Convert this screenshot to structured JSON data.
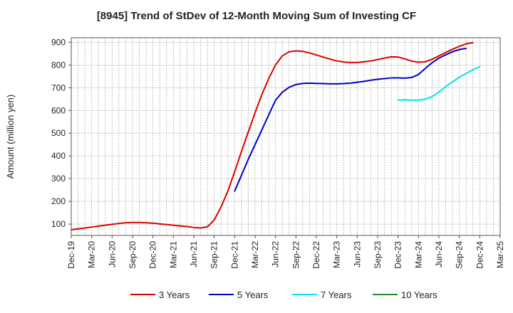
{
  "chart_data": {
    "type": "line",
    "title": "[8945]  Trend of StDev of 12-Month Moving Sum of Investing CF",
    "ylabel": "Amount (million yen)",
    "xlabel": "",
    "ylim": [
      50,
      920
    ],
    "yticks": [
      100,
      200,
      300,
      400,
      500,
      600,
      700,
      800,
      900
    ],
    "x_ticks": [
      "Dec-19",
      "Mar-20",
      "Jun-20",
      "Sep-20",
      "Dec-20",
      "Mar-21",
      "Jun-21",
      "Sep-21",
      "Dec-21",
      "Mar-22",
      "Jun-22",
      "Sep-22",
      "Dec-22",
      "Mar-23",
      "Jun-23",
      "Sep-23",
      "Dec-23",
      "Mar-24",
      "Jun-24",
      "Sep-24",
      "Dec-24",
      "Mar-25"
    ],
    "grid": true,
    "legend_position": "bottom",
    "series": [
      {
        "name": "3 Years",
        "color": "#dd0000",
        "start_index": 0,
        "values": [
          75,
          79,
          83,
          87,
          91,
          95,
          99,
          103,
          106,
          107,
          107,
          106,
          104,
          101,
          98,
          95,
          92,
          89,
          85,
          83,
          88,
          118,
          175,
          245,
          330,
          420,
          505,
          590,
          670,
          740,
          800,
          840,
          858,
          862,
          860,
          853,
          844,
          835,
          826,
          818,
          813,
          811,
          811,
          814,
          818,
          824,
          830,
          836,
          835,
          827,
          817,
          812,
          814,
          825,
          840,
          855,
          869,
          882,
          893,
          898
        ]
      },
      {
        "name": "5 Years",
        "color": "#0000cc",
        "start_index": 24,
        "values": [
          245,
          315,
          385,
          450,
          515,
          580,
          645,
          680,
          702,
          714,
          719,
          720,
          719,
          718,
          717,
          717,
          718,
          720,
          724,
          728,
          733,
          737,
          740,
          743,
          743,
          742,
          745,
          758,
          785,
          810,
          830,
          845,
          858,
          868,
          873
        ]
      },
      {
        "name": "7 Years",
        "color": "#00e5ee",
        "start_index": 48,
        "values": [
          645,
          647,
          645,
          645,
          650,
          661,
          680,
          705,
          726,
          746,
          763,
          779,
          792
        ]
      },
      {
        "name": "10 Years",
        "color": "#228b22",
        "start_index": 0,
        "values": []
      }
    ]
  }
}
